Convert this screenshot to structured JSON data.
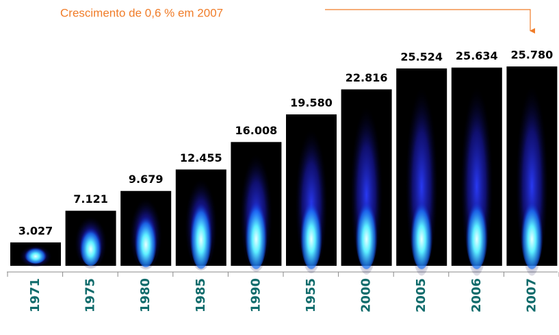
{
  "chart_data": {
    "type": "bar",
    "annotation": "Crescimento de 0,6 % em 2007",
    "categories": [
      "1971",
      "1975",
      "1980",
      "1985",
      "1990",
      "1955",
      "2000",
      "2005",
      "2006",
      "2007"
    ],
    "values": [
      3027,
      7121,
      9679,
      12455,
      16008,
      19580,
      22816,
      25524,
      25634,
      25780
    ],
    "value_labels": [
      "3.027",
      "7.121",
      "9.679",
      "12.455",
      "16.008",
      "19.580",
      "22.816",
      "25.524",
      "25.634",
      "25.780"
    ],
    "color": "#000000",
    "label_color": "#0f6b6b",
    "annotation_color": "#f07c28"
  }
}
